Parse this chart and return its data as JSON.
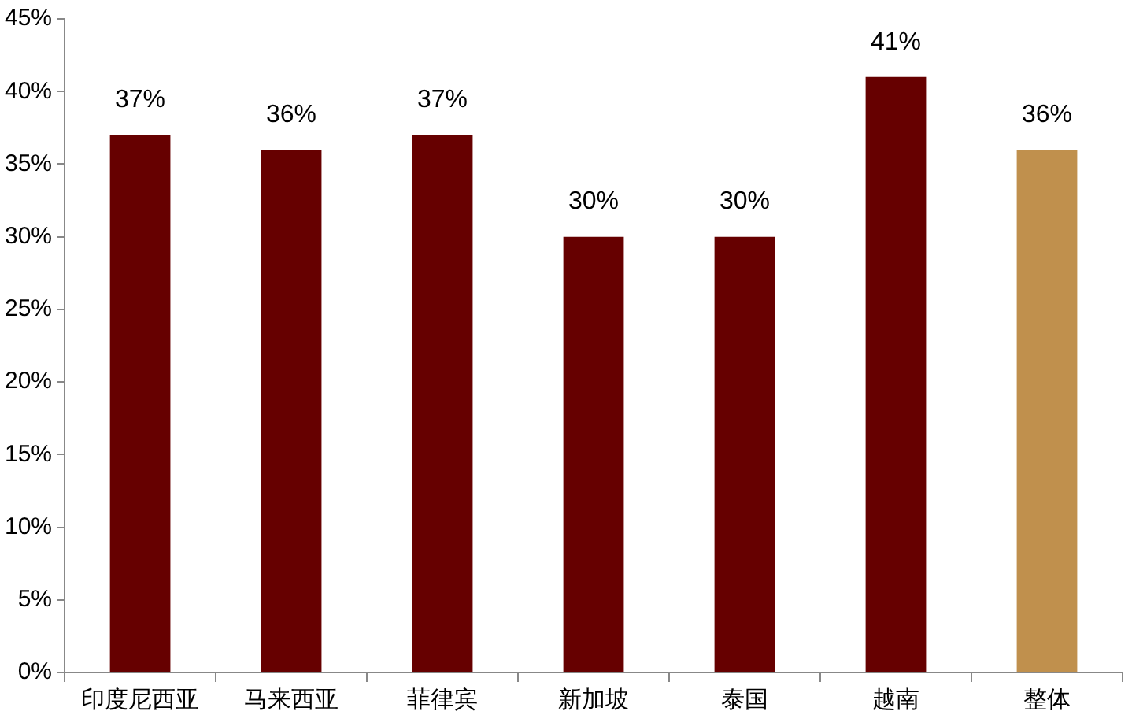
{
  "chart_data": {
    "type": "bar",
    "categories": [
      "印度尼西亚",
      "马来西亚",
      "菲律宾",
      "新加坡",
      "泰国",
      "越南",
      "整体"
    ],
    "values": [
      37,
      36,
      37,
      30,
      30,
      41,
      36
    ],
    "colors": [
      "#660000",
      "#660000",
      "#660000",
      "#660000",
      "#660000",
      "#660000",
      "#c0904d"
    ],
    "value_labels": [
      "37%",
      "36%",
      "37%",
      "30%",
      "30%",
      "41%",
      "36%"
    ],
    "ylim": [
      0,
      45
    ],
    "yticks": [
      {
        "value": 0,
        "label": "0%"
      },
      {
        "value": 5,
        "label": "5%"
      },
      {
        "value": 10,
        "label": "10%"
      },
      {
        "value": 15,
        "label": "15%"
      },
      {
        "value": 20,
        "label": "20%"
      },
      {
        "value": 25,
        "label": "25%"
      },
      {
        "value": 30,
        "label": "30%"
      },
      {
        "value": 35,
        "label": "35%"
      },
      {
        "value": 40,
        "label": "40%"
      },
      {
        "value": 45,
        "label": "45%"
      }
    ],
    "grid": false,
    "legend": false
  }
}
